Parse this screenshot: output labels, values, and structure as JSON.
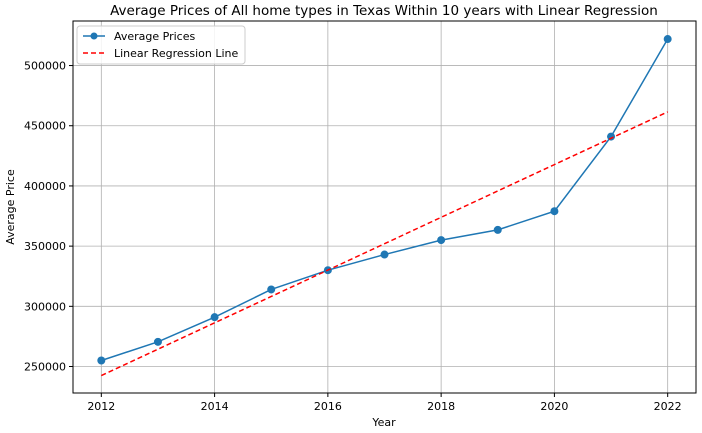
{
  "chart_data": {
    "type": "line",
    "title": "Average Prices of All home types in Texas Within 10 years with Linear Regression",
    "xlabel": "Year",
    "ylabel": "Average Price",
    "xlim": [
      2011.5,
      2022.5
    ],
    "ylim": [
      228000,
      537000
    ],
    "x_ticks": [
      2012,
      2014,
      2016,
      2018,
      2020,
      2022
    ],
    "y_ticks": [
      250000,
      300000,
      350000,
      400000,
      450000,
      500000
    ],
    "grid": true,
    "legend_position": "top-left",
    "x": [
      2012,
      2013,
      2014,
      2015,
      2016,
      2017,
      2018,
      2019,
      2020,
      2021,
      2022
    ],
    "series": [
      {
        "name": "Average Prices",
        "style": "solid-marker",
        "color": "#1f77b4",
        "values": [
          255000,
          270500,
          291000,
          314000,
          330000,
          343000,
          355000,
          363500,
          379000,
          441000,
          522000
        ]
      },
      {
        "name": "Linear Regression Line",
        "style": "dashed",
        "color": "#ff0000",
        "values": [
          242500,
          264400,
          286300,
          308200,
          330100,
          352000,
          373900,
          395800,
          417700,
          439600,
          461500
        ]
      }
    ]
  }
}
